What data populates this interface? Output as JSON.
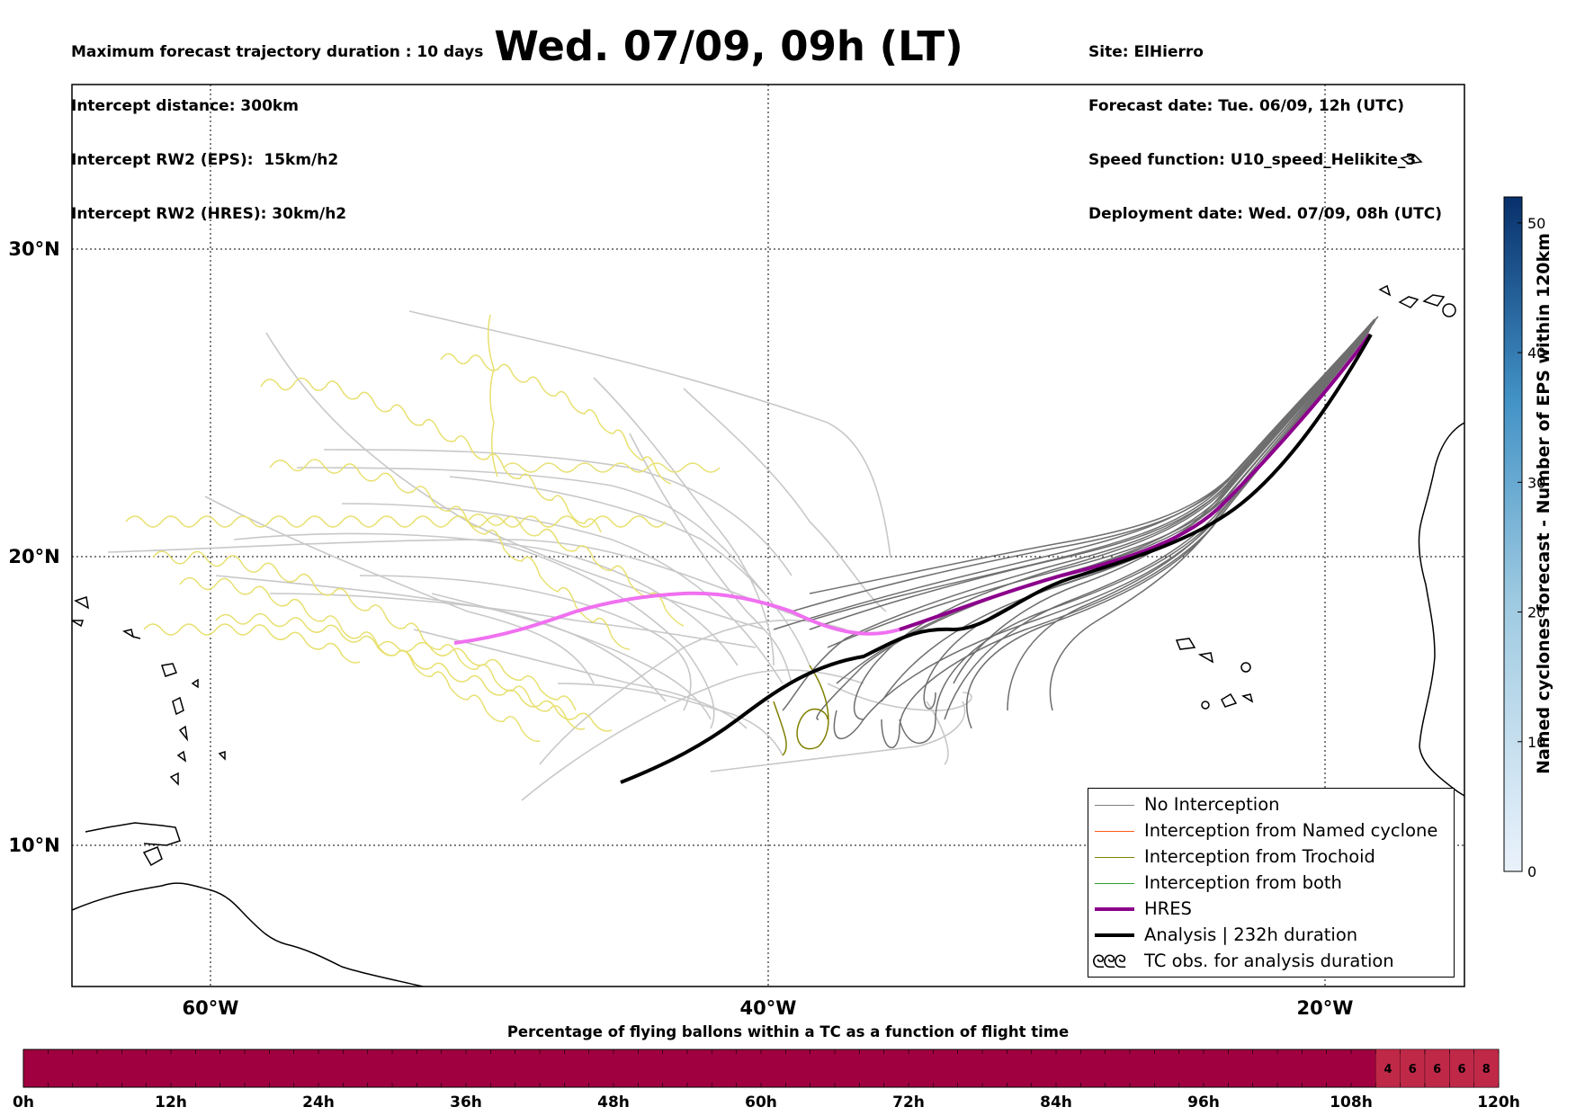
{
  "header_left": [
    "Maximum forecast trajectory duration : 10 days",
    "Intercept distance: 300km",
    "Intercept RW2 (EPS):  15km/h2",
    "Intercept RW2 (HRES): 30km/h2"
  ],
  "header_right": [
    "Site: ElHierro",
    "Forecast date: Tue. 06/09, 12h (UTC)",
    "Speed function: U10_speed_Helikite_3",
    "Deployment date: Wed. 07/09, 08h (UTC)"
  ],
  "title": "Wed. 07/09, 09h (LT)",
  "map": {
    "lat_labels": [
      "30°N",
      "20°N",
      "10°N"
    ],
    "lon_labels": [
      "60°W",
      "40°W",
      "20°W"
    ]
  },
  "legend": {
    "items": [
      {
        "label": "No Interception",
        "color": "#808080",
        "width": 1.5
      },
      {
        "label": "Interception from Named cyclone",
        "color": "#ff5a14",
        "width": 1.5
      },
      {
        "label": "Interception from Trochoid",
        "color": "#808000",
        "width": 1.5
      },
      {
        "label": "Interception from both",
        "color": "#2ca02c",
        "width": 1.5
      },
      {
        "label": "HRES",
        "color": "#8b008b",
        "width": 4
      },
      {
        "label": "Analysis | 232h duration",
        "color": "#000000",
        "width": 4
      },
      {
        "label": "TC obs. for analysis duration",
        "symbol": "ᘓᘓᘓ"
      }
    ]
  },
  "colorbar": {
    "title": "Named cyclones forecast - Number of EPS within 120km",
    "ticks": [
      "0",
      "10",
      "20",
      "30",
      "40",
      "50"
    ],
    "range": [
      0,
      52
    ],
    "colors": [
      "#eaf2fb",
      "#08306b"
    ]
  },
  "time_bar": {
    "title": "Percentage of flying ballons within a TC as a function of flight time",
    "ticks": [
      "0h",
      "12h",
      "24h",
      "36h",
      "48h",
      "60h",
      "72h",
      "84h",
      "96h",
      "108h",
      "120h"
    ],
    "base_color": "#a0003f",
    "highlight_color": "#c02848",
    "highlight_values": [
      "4",
      "6",
      "6",
      "6",
      "8"
    ]
  }
}
